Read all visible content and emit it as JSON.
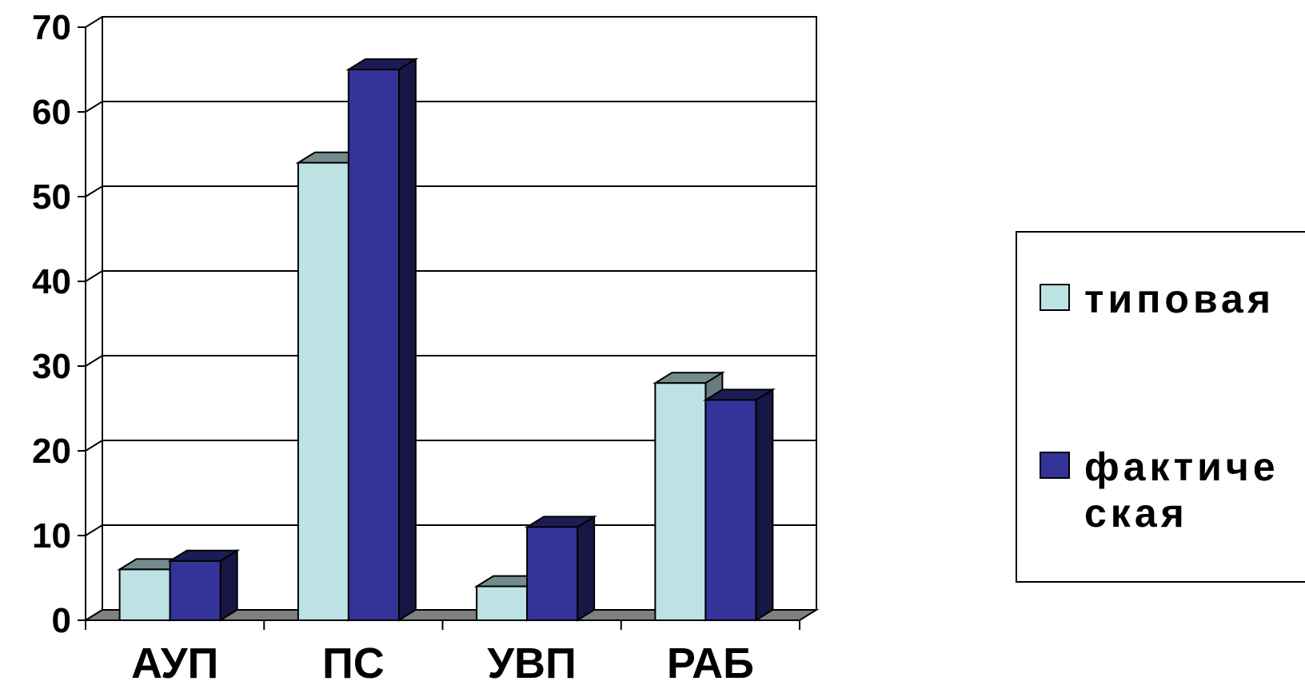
{
  "chart_data": {
    "type": "bar",
    "categories": [
      "АУП",
      "ПС",
      "УВП",
      "РАБ"
    ],
    "series": [
      {
        "name": "типовая",
        "values": [
          6,
          54,
          4,
          28
        ],
        "color": "#bce2e4"
      },
      {
        "name": "фактическая",
        "name_display": "фактиче ская",
        "values": [
          7,
          65,
          11,
          26
        ],
        "color": "#33339a"
      }
    ],
    "ylim": [
      0,
      70
    ],
    "yticks": [
      "0",
      "10",
      "20",
      "30",
      "40",
      "50",
      "60",
      "70"
    ],
    "grid": true,
    "legend_position": "right",
    "style": "3d-clustered-column"
  }
}
